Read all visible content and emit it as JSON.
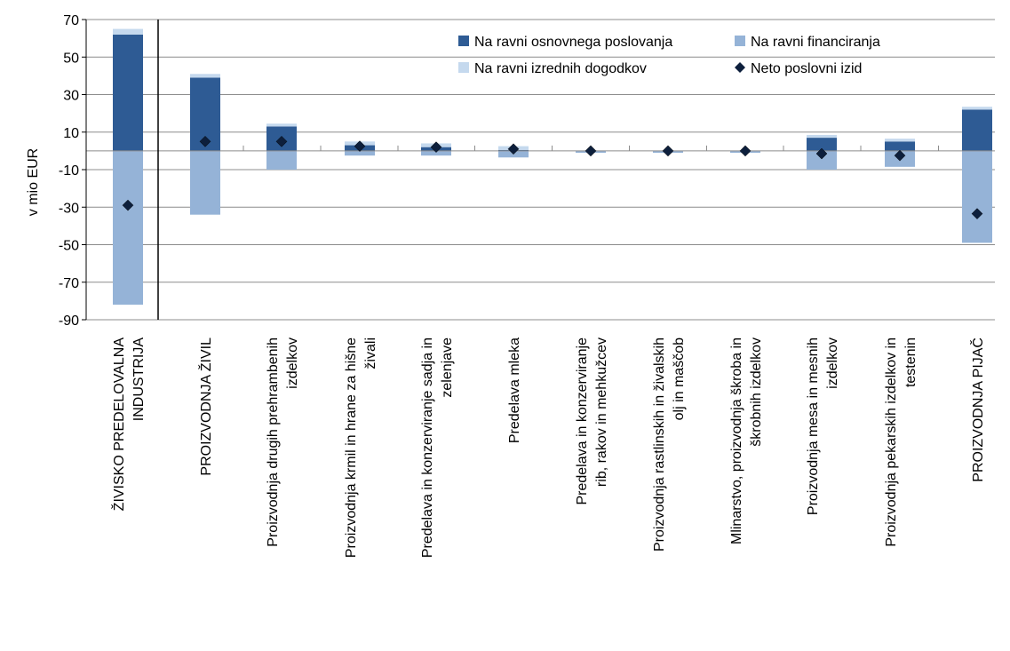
{
  "chart_data": {
    "type": "bar",
    "stacked": true,
    "ylabel": "v mio EUR",
    "xlabel": "",
    "title": "",
    "ylim": [
      -90,
      70
    ],
    "yticks": [
      70,
      50,
      30,
      10,
      -10,
      -30,
      -50,
      -70,
      -90
    ],
    "grid": true,
    "legend_position": "top-right",
    "categories": [
      [
        "ŽIVISKO PREDELOVALNA",
        "INDUSTRIJA"
      ],
      [
        "PROIZVODNJA ŽIVIL"
      ],
      [
        "Proizvodnja drugih prehrambenih",
        "izdelkov"
      ],
      [
        "Proizvodnja krmil in hrane za hišne",
        "živali"
      ],
      [
        "Predelava in konzerviranje sadja in",
        "zelenjave"
      ],
      [
        "Predelava mleka"
      ],
      [
        "Predelava in konzerviranje",
        "rib, rakov in mehkužcev"
      ],
      [
        "Proizvodnja rastlinskih in živalskih",
        "olj in maščob"
      ],
      [
        "Mlinarstvo, proizvodnja škroba in",
        "škrobnih izdelkov"
      ],
      [
        "Proizvodnja mesa in mesnih",
        "izdelkov"
      ],
      [
        "Proizvodnja pekarskih izdelkov in",
        "testenin"
      ],
      [
        "PROIZVODNJA PIJAČ"
      ]
    ],
    "series": [
      {
        "name": "Na ravni osnovnega poslovanja",
        "kind": "bar",
        "color": "#2e5b94",
        "values": [
          62,
          39,
          13,
          3,
          2,
          0.5,
          0,
          0,
          0,
          7,
          5,
          22
        ]
      },
      {
        "name": "Na ravni financiranja",
        "kind": "bar",
        "color": "#95b3d7",
        "values": [
          -82,
          -34,
          -10,
          -2.5,
          -2.5,
          -3.5,
          -1,
          -1,
          -1,
          -10,
          -8.5,
          -49
        ]
      },
      {
        "name": "Na ravni izrednih dogodkov",
        "kind": "bar",
        "color": "#c5d9ee",
        "values": [
          3,
          2,
          1.5,
          2,
          2,
          2,
          0,
          0,
          0,
          1.5,
          1.5,
          1.5
        ]
      },
      {
        "name": "Neto poslovni izid",
        "kind": "marker",
        "color": "#0d1f3c",
        "values": [
          -29,
          5,
          5,
          2.5,
          2,
          1,
          0,
          0,
          0,
          -1.5,
          -2.5,
          -33.5
        ]
      }
    ]
  }
}
